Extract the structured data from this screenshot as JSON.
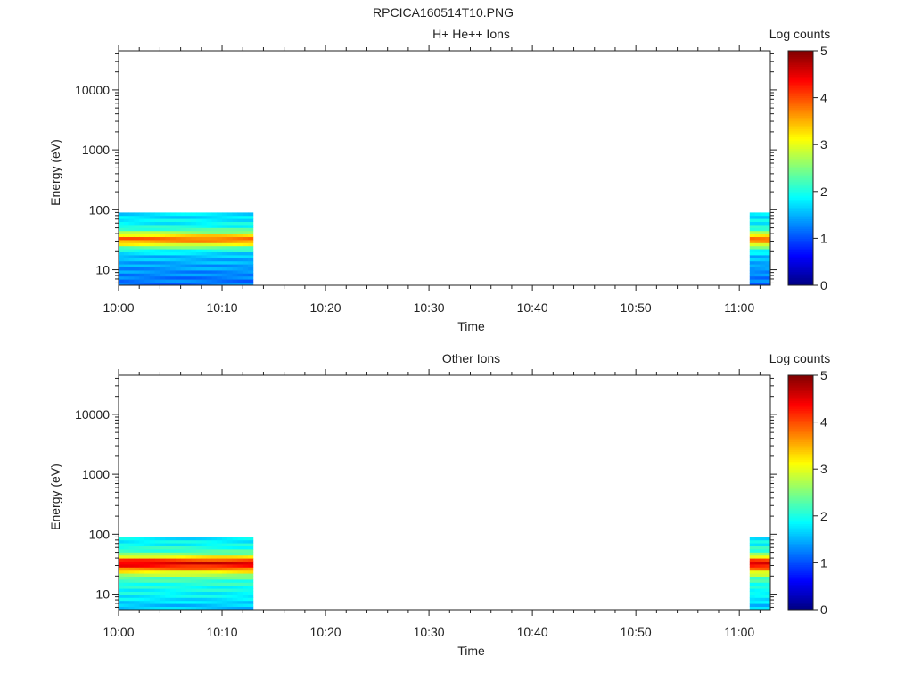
{
  "figure_title": "RPCICA160514T10.PNG",
  "chart_data": [
    {
      "type": "heatmap",
      "title": "H+ He++ Ions",
      "xlabel": "Time",
      "ylabel": "Energy (eV)",
      "y_scale": "log",
      "ylim": [
        5.5,
        45000
      ],
      "xlim": [
        "10:00",
        "11:03"
      ],
      "x_ticks": [
        "10:00",
        "10:10",
        "10:20",
        "10:30",
        "10:40",
        "10:50",
        "11:00"
      ],
      "y_ticks": [
        "10",
        "100",
        "1000",
        "10000"
      ],
      "colorbar": {
        "label": "Log counts",
        "range": [
          0,
          5
        ],
        "ticks": [
          "0",
          "1",
          "2",
          "3",
          "4",
          "5"
        ]
      },
      "data_blocks": [
        {
          "start": "10:00",
          "end": "10:13",
          "energy_range": [
            5.5,
            90
          ]
        },
        {
          "start": "11:01",
          "end": "11:03",
          "energy_range": [
            5.5,
            90
          ]
        }
      ],
      "spectrum": {
        "energy_ev": [
          6.5,
          8.5,
          11,
          14,
          18,
          23,
          28,
          33,
          38,
          45,
          55,
          68,
          82
        ],
        "log_counts": [
          1.2,
          1.3,
          1.4,
          1.5,
          1.6,
          2.2,
          3.4,
          3.9,
          3.2,
          2.3,
          1.9,
          1.8,
          1.7
        ]
      }
    },
    {
      "type": "heatmap",
      "title": "Other Ions",
      "xlabel": "Time",
      "ylabel": "Energy (eV)",
      "y_scale": "log",
      "ylim": [
        5.5,
        45000
      ],
      "xlim": [
        "10:00",
        "11:03"
      ],
      "x_ticks": [
        "10:00",
        "10:10",
        "10:20",
        "10:30",
        "10:40",
        "10:50",
        "11:00"
      ],
      "y_ticks": [
        "10",
        "100",
        "1000",
        "10000"
      ],
      "colorbar": {
        "label": "Log counts",
        "range": [
          0,
          5
        ],
        "ticks": [
          "0",
          "1",
          "2",
          "3",
          "4",
          "5"
        ]
      },
      "data_blocks": [
        {
          "start": "10:00",
          "end": "10:13",
          "energy_range": [
            5.5,
            90
          ]
        },
        {
          "start": "11:01",
          "end": "11:03",
          "energy_range": [
            5.5,
            90
          ]
        }
      ],
      "spectrum": {
        "energy_ev": [
          6.5,
          8.5,
          11,
          14,
          18,
          23,
          28,
          33,
          38,
          45,
          55,
          68,
          82
        ],
        "log_counts": [
          1.6,
          1.8,
          1.9,
          2.0,
          2.2,
          3.0,
          4.1,
          4.6,
          4.0,
          2.6,
          2.1,
          1.9,
          1.8
        ]
      }
    }
  ]
}
